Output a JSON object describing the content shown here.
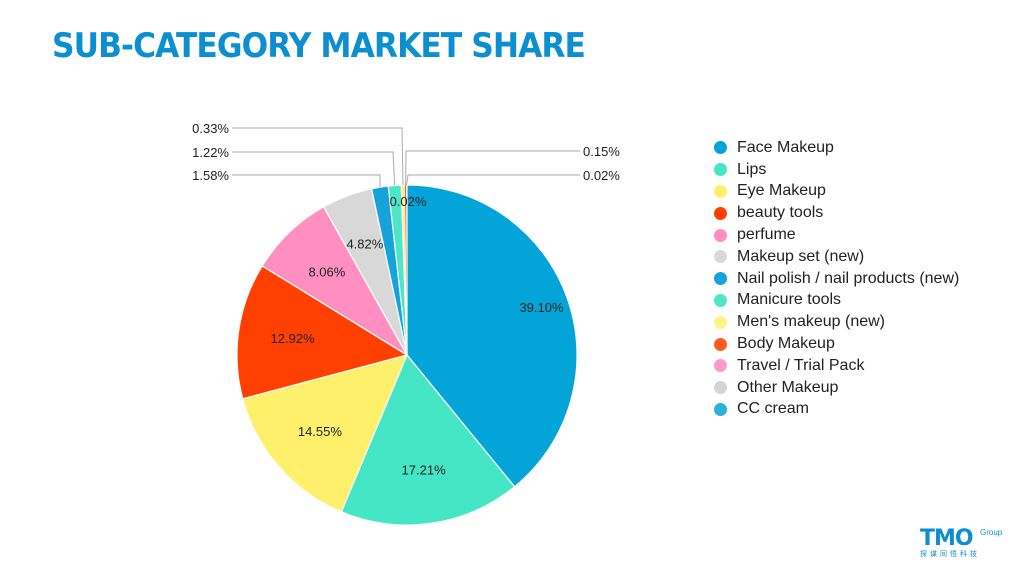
{
  "title": "SUB-CATEGORY MARKET SHARE",
  "chart_data": {
    "type": "pie",
    "title": "SUB-CATEGORY MARKET SHARE",
    "legend_position": "right",
    "slices": [
      {
        "label": "Face Makeup",
        "value": 39.1,
        "display": "39.10%",
        "color": "#03a4d8"
      },
      {
        "label": "Lips",
        "value": 17.21,
        "display": "17.21%",
        "color": "#45e6c6"
      },
      {
        "label": "Eye Makeup",
        "value": 14.55,
        "display": "14.55%",
        "color": "#fff06c"
      },
      {
        "label": "beauty tools",
        "value": 12.92,
        "display": "12.92%",
        "color": "#ff4000"
      },
      {
        "label": "perfume",
        "value": 8.06,
        "display": "8.06%",
        "color": "#ff8ec1"
      },
      {
        "label": "Makeup set (new)",
        "value": 4.82,
        "display": "4.82%",
        "color": "#d8d8d8"
      },
      {
        "label": "Nail polish / nail products (new)",
        "value": 1.58,
        "display": "1.58%",
        "color": "#16a3d9"
      },
      {
        "label": "Manicure tools",
        "value": 1.22,
        "display": "1.22%",
        "color": "#4fe6c8"
      },
      {
        "label": "Men's makeup (new)",
        "value": 0.33,
        "display": "0.33%",
        "color": "#fff383"
      },
      {
        "label": "Body Makeup",
        "value": 0.15,
        "display": "0.15%",
        "color": "#ff5a1f"
      },
      {
        "label": "Travel / Trial Pack",
        "value": 0.02,
        "display": "0.02%",
        "color": "#ff99c8"
      },
      {
        "label": "Other Makeup",
        "value": 0.02,
        "display": "0.02%",
        "color": "#d4d4d4"
      },
      {
        "label": "CC cream",
        "value": 0.02,
        "display": "0.02%",
        "color": "#2bb0df"
      }
    ]
  },
  "logo": {
    "mark": "TMO",
    "group": "Group",
    "subtitle": "探谋同悟科技"
  }
}
